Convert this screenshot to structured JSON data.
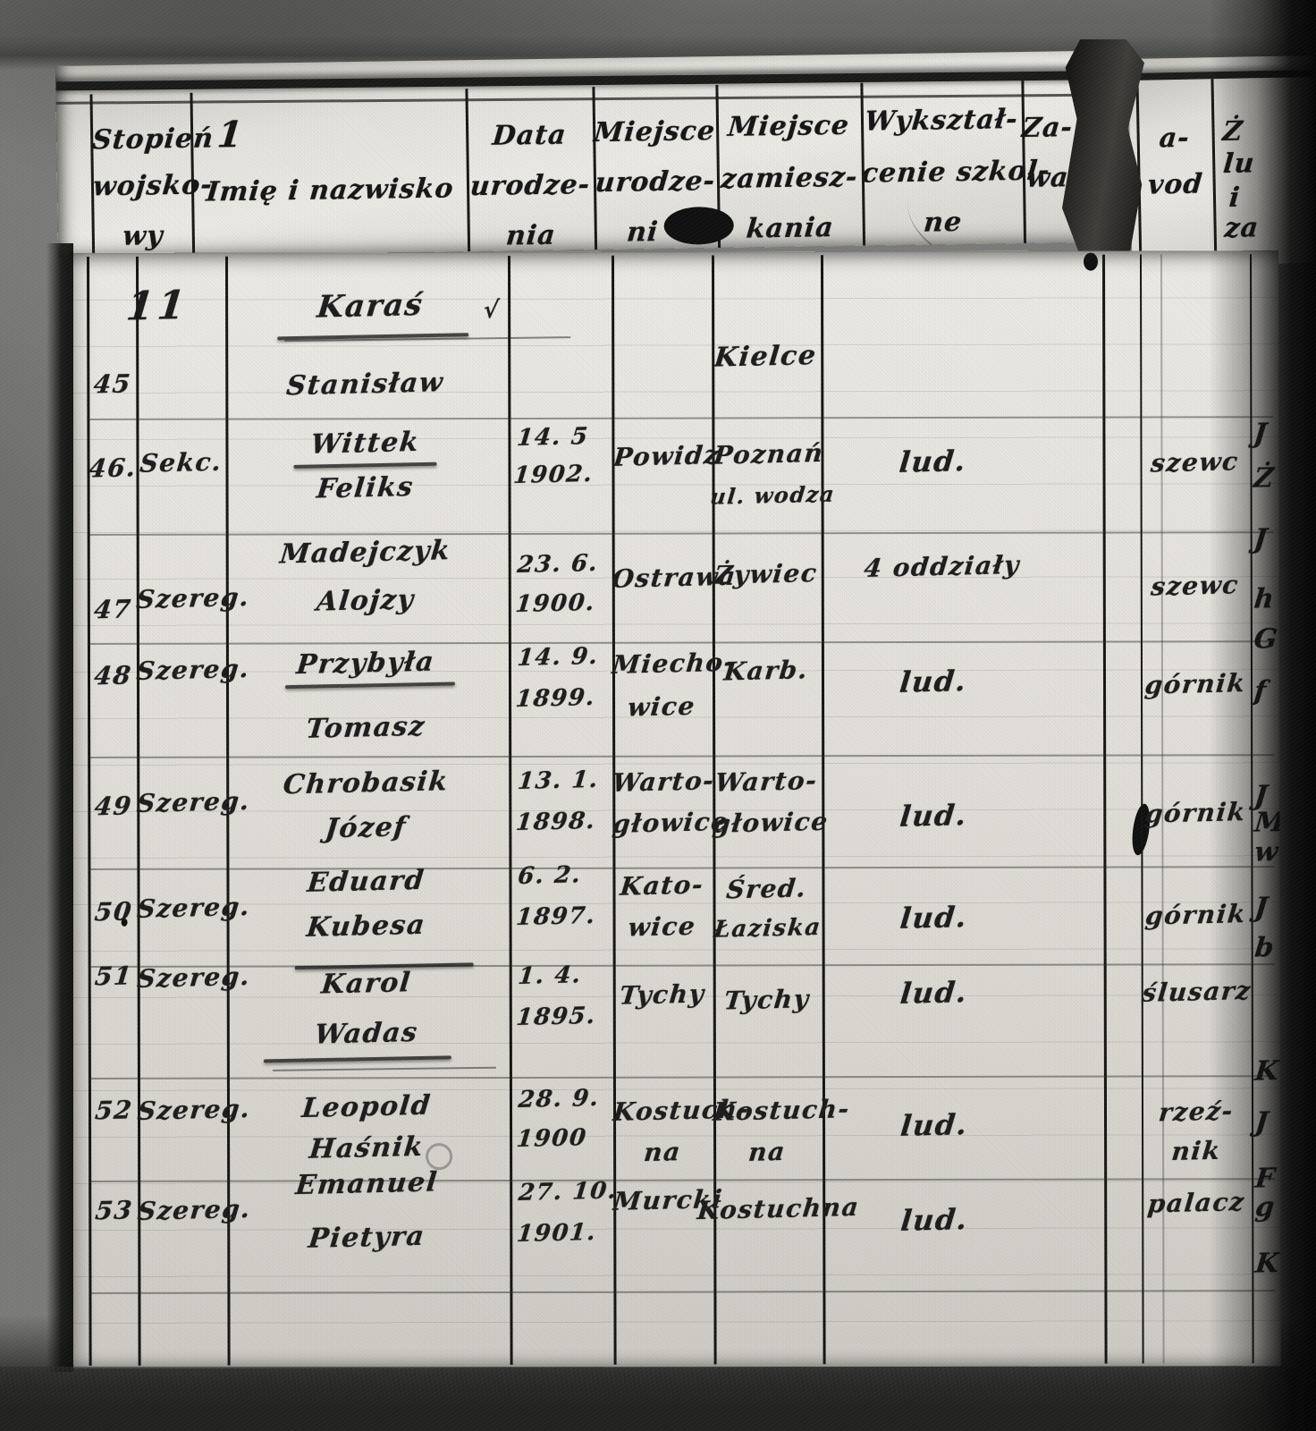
{
  "colors": {
    "paper": "#e7e4dd",
    "ink": "#1d1d1d",
    "background": "#7d7d7b",
    "shadow": "#050505"
  },
  "header_page": {
    "columns": [
      {
        "lines": [
          "Stopień",
          "wojsko-",
          "wy"
        ]
      },
      {
        "number": "1",
        "lines": [
          "Imię i nazwisko"
        ]
      },
      {
        "lines": [
          "Data",
          "urodze-",
          "nia"
        ]
      },
      {
        "lines": [
          "Miejsce",
          "urodze-",
          "ni"
        ]
      },
      {
        "lines": [
          "Miejsce",
          "zamiesz-",
          "kania"
        ]
      },
      {
        "lines": [
          "Wykształ-",
          "cenie szkol-",
          "ne"
        ]
      },
      {
        "lines": [
          "Za-",
          "wa"
        ]
      }
    ],
    "right_fragment": {
      "col1": [
        "a-",
        "vod"
      ],
      "col2": [
        "Ż",
        "lu",
        "i",
        "za"
      ]
    }
  },
  "main_page": {
    "page_number": "11",
    "group_heading": {
      "surname": "Karaś",
      "checkmark": "√"
    },
    "rows": [
      {
        "num": "45",
        "rank": "",
        "name": [
          "",
          "Stanisław"
        ],
        "date": [
          "",
          ""
        ],
        "birth": [
          "",
          ""
        ],
        "residence": [
          "Kielce",
          ""
        ],
        "education": "",
        "profession": [
          "",
          ""
        ]
      },
      {
        "num": "46.",
        "rank": "Sekc.",
        "name": [
          "Wittek",
          "Feliks"
        ],
        "date": [
          "14. 5",
          "1902."
        ],
        "birth": [
          "Powidz",
          ""
        ],
        "residence": [
          "Poznań",
          "ul. wodza"
        ],
        "education": "lud.",
        "profession": [
          "szewc",
          ""
        ]
      },
      {
        "num": "47",
        "rank": "Szereg.",
        "name": [
          "Madejczyk",
          "Alojzy"
        ],
        "date": [
          "23. 6.",
          "1900."
        ],
        "birth": [
          "Ostrawa",
          ""
        ],
        "residence": [
          "Żywiec",
          ""
        ],
        "education": "4 oddziały",
        "profession": [
          "szewc",
          ""
        ]
      },
      {
        "num": "48",
        "rank": "Szereg.",
        "name": [
          "Przybyła",
          "Tomasz"
        ],
        "date": [
          "14. 9.",
          "1899."
        ],
        "birth": [
          "Miecho-",
          "wice"
        ],
        "residence": [
          "Karb.",
          ""
        ],
        "education": "lud.",
        "profession": [
          "górnik",
          ""
        ]
      },
      {
        "num": "49",
        "rank": "Szereg.",
        "name": [
          "Chrobasik",
          "Józef"
        ],
        "date": [
          "13. 1.",
          "1898."
        ],
        "birth": [
          "Warto-",
          "głowice"
        ],
        "residence": [
          "Warto-",
          "głowice"
        ],
        "education": "lud.",
        "profession": [
          "górnik",
          ""
        ]
      },
      {
        "num": "50",
        "rank": "Szereg.",
        "name": [
          "Eduard",
          "Kubesa"
        ],
        "date": [
          "6. 2.",
          "1897."
        ],
        "birth": [
          "Kato-",
          "wice"
        ],
        "residence": [
          "Śred.",
          "Łaziska"
        ],
        "education": "lud.",
        "profession": [
          "górnik",
          ""
        ]
      },
      {
        "num": "51",
        "rank": "Szereg.",
        "name": [
          "Karol",
          "Wadas"
        ],
        "date": [
          "1. 4.",
          "1895."
        ],
        "birth": [
          "Tychy",
          ""
        ],
        "residence": [
          "Tychy",
          ""
        ],
        "education": "lud.",
        "profession": [
          "ślusarz",
          ""
        ]
      },
      {
        "num": "52",
        "rank": "Szereg.",
        "name": [
          "Leopold",
          "Haśnik"
        ],
        "date": [
          "28. 9.",
          "1900"
        ],
        "birth": [
          "Kostuch-",
          "na"
        ],
        "residence": [
          "Kostuch-",
          "na"
        ],
        "education": "lud.",
        "profession": [
          "rzeź-",
          "nik"
        ]
      },
      {
        "num": "53",
        "rank": "Szereg.",
        "name": [
          "Emanuel",
          "Pietyra"
        ],
        "date": [
          "27. 10.",
          "1901."
        ],
        "birth": [
          "Murcki",
          ""
        ],
        "residence": [
          "Kostuchna",
          ""
        ],
        "education": "lud.",
        "profession": [
          "palacz",
          ""
        ]
      }
    ],
    "edge_fragments": [
      "J",
      "Ż",
      "J",
      "h",
      "G",
      "f",
      "J",
      "M",
      "w",
      "J",
      "b",
      "K",
      "J",
      "F",
      "g",
      "K"
    ]
  }
}
